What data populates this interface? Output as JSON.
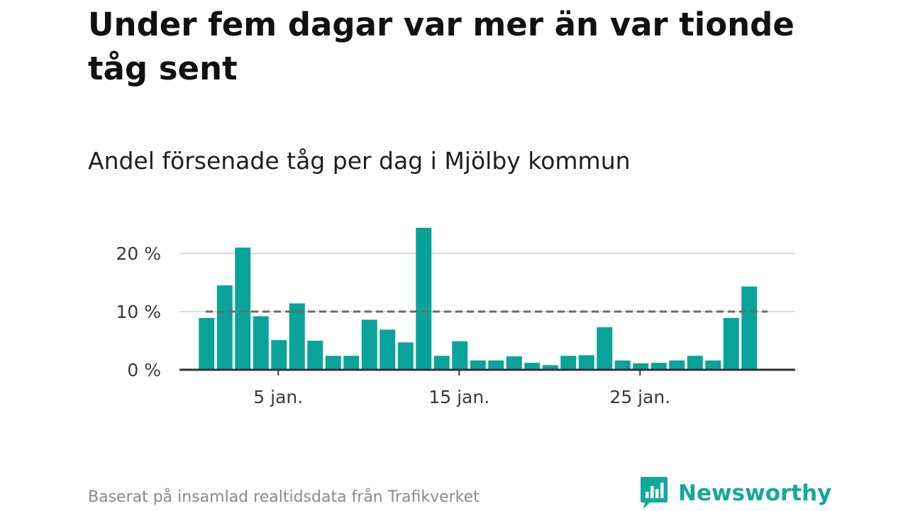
{
  "title": "Under fem dagar var mer än var tionde tåg sent",
  "subtitle": "Andel försenade tåg per dag i Mjölby kommun",
  "footer": "Baserat på insamlad realtidsdata från Trafikverket",
  "brand": {
    "name": "Newsworthy",
    "color": "#14a89d"
  },
  "chart_data": {
    "type": "bar",
    "x": [
      1,
      2,
      3,
      4,
      5,
      6,
      7,
      8,
      9,
      10,
      11,
      12,
      13,
      14,
      15,
      16,
      17,
      18,
      19,
      20,
      21,
      22,
      23,
      24,
      25,
      26,
      27,
      28,
      29,
      30,
      31
    ],
    "x_unit": "January (day)",
    "values": [
      8.9,
      14.5,
      21.0,
      9.2,
      5.1,
      11.4,
      5.0,
      2.4,
      2.4,
      8.6,
      6.9,
      4.7,
      24.4,
      2.4,
      4.9,
      1.6,
      1.6,
      2.3,
      1.2,
      0.8,
      2.4,
      2.5,
      7.3,
      1.6,
      1.1,
      1.2,
      1.6,
      2.4,
      1.6,
      8.9,
      14.3
    ],
    "reference_line": {
      "value": 10,
      "style": "dashed"
    },
    "y_ticks": [
      0,
      10,
      20
    ],
    "y_tick_labels": [
      "0 %",
      "10 %",
      "20 %"
    ],
    "x_ticks": [
      5,
      15,
      25
    ],
    "x_tick_labels": [
      "5 jan.",
      "15 jan.",
      "25 jan."
    ],
    "ylim": [
      0,
      25
    ],
    "grid": true,
    "colors": {
      "bar": "#0aa39a",
      "reference": "#6b6b6b",
      "grid": "#dedede",
      "axis": "#333333",
      "tick_label": "#3a3a3a"
    }
  }
}
